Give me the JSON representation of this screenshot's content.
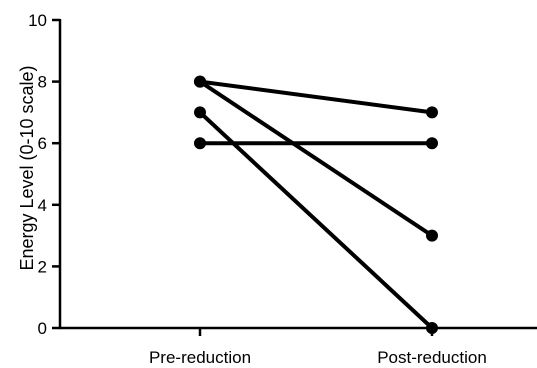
{
  "chart_data": {
    "type": "line",
    "categories": [
      "Pre-reduction",
      "Post-reduction"
    ],
    "ylabel": "Energy  Level (0-10 scale)",
    "xlabel": "",
    "ylim": [
      0,
      10
    ],
    "yticks": [
      "0",
      "2",
      "4",
      "6",
      "8",
      "10"
    ],
    "grid": false,
    "series": [
      {
        "values": [
          8,
          7
        ]
      },
      {
        "values": [
          8,
          3
        ]
      },
      {
        "values": [
          7,
          0
        ]
      },
      {
        "values": [
          6,
          6
        ]
      }
    ]
  }
}
